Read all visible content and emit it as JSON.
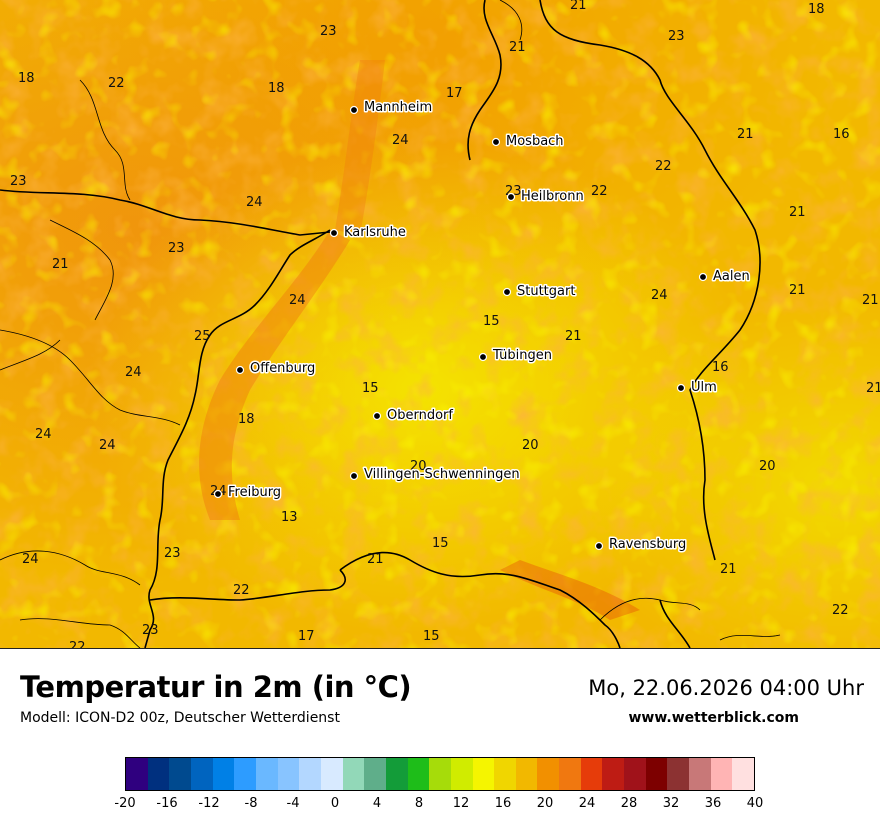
{
  "map": {
    "title": "Temperatur in 2m (in °C)",
    "model": "Modell: ICON-D2 00z, Deutscher Wetterdienst",
    "datetime": "Mo, 22.06.2026 04:00 Uhr",
    "website": "www.wetterblick.com",
    "cities": [
      {
        "name": "Mannheim"
      },
      {
        "name": "Mosbach"
      },
      {
        "name": "Heilbronn"
      },
      {
        "name": "Karlsruhe"
      },
      {
        "name": "Stuttgart"
      },
      {
        "name": "Aalen"
      },
      {
        "name": "Tübingen"
      },
      {
        "name": "Offenburg"
      },
      {
        "name": "Ulm"
      },
      {
        "name": "Oberndorf"
      },
      {
        "name": "Villingen-Schwenningen"
      },
      {
        "name": "Freiburg"
      },
      {
        "name": "Ravensburg"
      }
    ],
    "temperatures": [
      "21",
      "18",
      "23",
      "23",
      "21",
      "17",
      "24",
      "18",
      "22",
      "18",
      "16",
      "24",
      "23",
      "22",
      "22",
      "23",
      "21",
      "23",
      "21",
      "24",
      "21",
      "21",
      "25",
      "15",
      "21",
      "24",
      "16",
      "21",
      "15",
      "21",
      "18",
      "24",
      "24",
      "24",
      "20",
      "20",
      "20",
      "13",
      "24",
      "15",
      "21",
      "23",
      "21",
      "24",
      "22",
      "23",
      "17",
      "15",
      "22",
      "22"
    ]
  },
  "legend": {
    "colors": [
      "#2f007f",
      "#00307f",
      "#004a8f",
      "#0064bf",
      "#0080e6",
      "#2d9cff",
      "#6ab8ff",
      "#88c4ff",
      "#b3d7ff",
      "#d8eaff",
      "#92d8b8",
      "#5fae8a",
      "#139c39",
      "#1ebd19",
      "#a6dc0a",
      "#d0ec00",
      "#f5f500",
      "#f0d600",
      "#f2b800",
      "#f29000",
      "#f07810",
      "#e63c0a",
      "#be1c14",
      "#a0121a",
      "#7d0000",
      "#8c3232",
      "#c87878",
      "#ffb4b4",
      "#ffe0e0"
    ],
    "tick_labels": [
      "-20",
      "-16",
      "-12",
      "-8",
      "-4",
      "0",
      "4",
      "8",
      "12",
      "16",
      "20",
      "24",
      "28",
      "32",
      "36",
      "40"
    ],
    "min": -20,
    "max": 40
  }
}
